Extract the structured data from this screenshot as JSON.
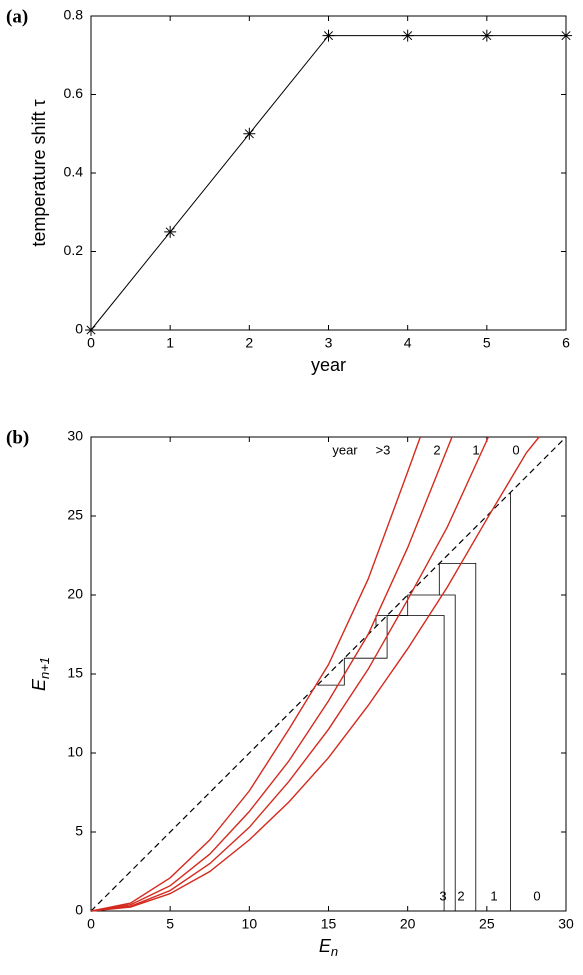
{
  "chart_data": [
    {
      "type": "line",
      "panel_label": "(a)",
      "x": [
        0,
        1,
        2,
        3,
        4,
        5,
        6
      ],
      "values": [
        0,
        0.25,
        0.5,
        0.75,
        0.75,
        0.75,
        0.75
      ],
      "color": "#000000",
      "marker": "asterisk",
      "xlim": [
        0,
        6
      ],
      "ylim": [
        0,
        0.8
      ],
      "xticks": [
        0,
        1,
        2,
        3,
        4,
        5,
        6
      ],
      "yticks": [
        0,
        0.2,
        0.4,
        0.6,
        0.8
      ],
      "xlabel": "year",
      "ylabel": "temperature shift τ"
    },
    {
      "type": "line",
      "panel_label": "(b)",
      "series": [
        {
          "name": ">3",
          "color": "#d42a1e",
          "x": [
            0,
            2.5,
            5,
            7.5,
            10,
            12.5,
            15,
            17.5,
            20,
            20.8
          ],
          "values": [
            0,
            0.5,
            2.1,
            4.5,
            7.6,
            11.5,
            15.6,
            21,
            27.8,
            30
          ]
        },
        {
          "name": "2",
          "color": "#d42a1e",
          "x": [
            0,
            2.5,
            5,
            7.5,
            10,
            12.5,
            15,
            17.5,
            20,
            22.8
          ],
          "values": [
            0,
            0.4,
            1.6,
            3.6,
            6.3,
            9.5,
            13.3,
            17.5,
            23,
            30
          ]
        },
        {
          "name": "1",
          "color": "#d42a1e",
          "x": [
            0,
            2.5,
            5,
            7.5,
            10,
            12.5,
            15,
            17.5,
            20,
            22.5,
            25.1
          ],
          "values": [
            0,
            0.3,
            1.3,
            3,
            5.3,
            8.2,
            11.5,
            15.3,
            19.7,
            24.3,
            30
          ]
        },
        {
          "name": "0",
          "color": "#d42a1e",
          "x": [
            0,
            2.5,
            5,
            7.5,
            10,
            12.5,
            15,
            17.5,
            20,
            22.5,
            25,
            27.5,
            28.3
          ],
          "values": [
            0,
            0.25,
            1.1,
            2.5,
            4.5,
            6.9,
            9.7,
            13,
            16.6,
            20.5,
            24.8,
            29,
            30
          ]
        }
      ],
      "legend_title": "year",
      "cobweb_color": "#000000",
      "cobweb": [
        {
          "x": [
            22.3,
            22.3,
            18.7,
            18.7,
            16,
            16,
            14.3
          ],
          "values": [
            0,
            18.7,
            18.7,
            16,
            16,
            14.3,
            14.3
          ]
        },
        {
          "x": [
            23,
            23,
            20,
            20,
            18,
            18
          ],
          "values": [
            0,
            20,
            20,
            18.7,
            18.7,
            18
          ]
        },
        {
          "x": [
            24.3,
            24.3,
            22,
            22
          ],
          "values": [
            0,
            22,
            22,
            20
          ]
        },
        {
          "x": [
            26.5,
            26.5
          ],
          "values": [
            0,
            26.5
          ]
        }
      ],
      "bottom_labels": [
        "3",
        "2",
        "1",
        "0"
      ],
      "diagonal": "dashed",
      "xlim": [
        0,
        30
      ],
      "ylim": [
        0,
        30
      ],
      "xticks": [
        0,
        5,
        10,
        15,
        20,
        25,
        30
      ],
      "yticks": [
        0,
        5,
        10,
        15,
        20,
        25,
        30
      ],
      "xlabel": {
        "base": "E",
        "sub": "n"
      },
      "ylabel": {
        "base": "E",
        "sub": "n+1"
      }
    }
  ]
}
